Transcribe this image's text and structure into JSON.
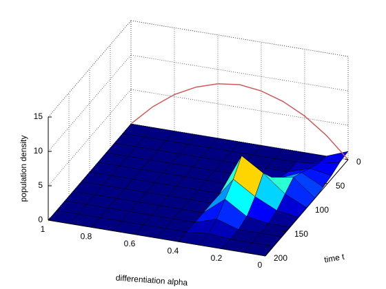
{
  "chart_data": {
    "type": "surface3d",
    "xlabel": "differentiation alpha",
    "ylabel": "time t",
    "zlabel": "population density",
    "alpha": [
      0,
      0.1,
      0.2,
      0.3,
      0.4,
      0.5,
      0.6,
      0.7,
      0.8,
      0.9,
      1
    ],
    "time": [
      0,
      20,
      40,
      60,
      80,
      100,
      120,
      140,
      160,
      180,
      200
    ],
    "z": [
      [
        1.2,
        0,
        0,
        0,
        0,
        0,
        0,
        0,
        0,
        0,
        0
      ],
      [
        1.0,
        0.3,
        0,
        0,
        0,
        0,
        0,
        0,
        0,
        0,
        0
      ],
      [
        0.5,
        1.0,
        0,
        0,
        0,
        0,
        0,
        0,
        0,
        0,
        0
      ],
      [
        0.2,
        1.8,
        0.5,
        0,
        0,
        0,
        0,
        0,
        0,
        0,
        0
      ],
      [
        0,
        2.5,
        2,
        0,
        0,
        0,
        0,
        0,
        0,
        0,
        0
      ],
      [
        0,
        1.5,
        4,
        6,
        0,
        0,
        0,
        0,
        0,
        0,
        0
      ],
      [
        0,
        0.5,
        2,
        4,
        0,
        0,
        0,
        0,
        0,
        0,
        0
      ],
      [
        0,
        0,
        0.5,
        2.5,
        0,
        0,
        0,
        0,
        0,
        0,
        0
      ],
      [
        0,
        0,
        0,
        1,
        0,
        0,
        0,
        0,
        0,
        0,
        0
      ],
      [
        0,
        0,
        0,
        0.3,
        0,
        0,
        0,
        0,
        0,
        0,
        0
      ],
      [
        0,
        0,
        0,
        0,
        0,
        0,
        0,
        0,
        0,
        0,
        0
      ]
    ],
    "curve": {
      "color": "#cc5a5a",
      "values": [
        0,
        3.0,
        5.3,
        6.9,
        7.9,
        8.3,
        7.9,
        6.9,
        5.3,
        3.0,
        0
      ]
    },
    "xlim": [
      0,
      1
    ],
    "xticks": [
      0,
      0.2,
      0.4,
      0.6,
      0.8,
      1
    ],
    "ylim": [
      0,
      200
    ],
    "yticks": [
      0,
      50,
      100,
      150,
      200
    ],
    "zlim": [
      0,
      15
    ],
    "zticks": [
      0,
      5,
      10,
      15
    ],
    "colormap": "jet",
    "grid": true
  }
}
